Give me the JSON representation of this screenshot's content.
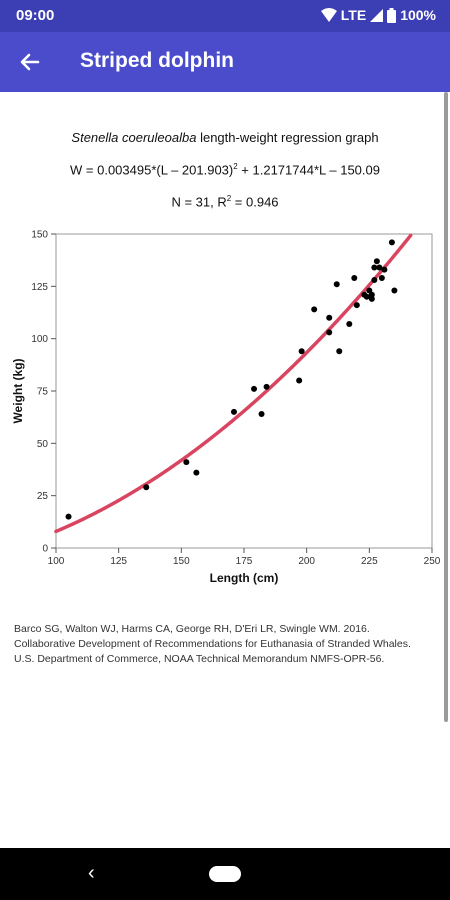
{
  "status": {
    "time": "09:00",
    "network": "LTE",
    "battery": "100%"
  },
  "app_bar": {
    "title": "Striped dolphin"
  },
  "header": {
    "species": "Stenella coeruleoalba",
    "title_rest": " length-weight regression graph",
    "equation_a": "W = 0.003495*(L – 201.903)",
    "equation_sup": "2",
    "equation_b": " + 1.2171744*L – 150.09",
    "stats_a": "N = 31, R",
    "stats_sup": "2",
    "stats_b": " = 0.946"
  },
  "citation": {
    "line1": "Barco SG, Walton WJ, Harms CA, George RH, D'Eri LR, Swingle WM. 2016.",
    "line2": "Collaborative Development of Recommendations for Euthanasia of Stranded Whales.",
    "line3": "U.S. Department of Commerce, NOAA Technical Memorandum NMFS-OPR-56."
  },
  "chart_data": {
    "type": "scatter",
    "xlabel": "Length (cm)",
    "ylabel": "Weight (kg)",
    "xlim": [
      100,
      250
    ],
    "ylim": [
      0,
      150
    ],
    "xticks": [
      100,
      125,
      150,
      175,
      200,
      225,
      250
    ],
    "yticks": [
      0,
      25,
      50,
      75,
      100,
      125,
      150
    ],
    "grid": false,
    "points": [
      [
        105,
        15
      ],
      [
        136,
        29
      ],
      [
        152,
        41
      ],
      [
        156,
        36
      ],
      [
        171,
        65
      ],
      [
        179,
        76
      ],
      [
        182,
        64
      ],
      [
        184,
        77
      ],
      [
        197,
        80
      ],
      [
        198,
        94
      ],
      [
        203,
        114
      ],
      [
        209,
        110
      ],
      [
        209,
        103
      ],
      [
        212,
        126
      ],
      [
        213,
        94
      ],
      [
        217,
        107
      ],
      [
        219,
        129
      ],
      [
        220,
        116
      ],
      [
        223,
        121
      ],
      [
        225,
        123
      ],
      [
        226,
        119
      ],
      [
        226,
        121
      ],
      [
        227,
        128
      ],
      [
        227,
        134
      ],
      [
        228,
        137
      ],
      [
        229,
        134
      ],
      [
        230,
        129
      ],
      [
        231,
        133
      ],
      [
        234,
        146
      ],
      [
        235,
        123
      ],
      [
        224,
        120
      ]
    ],
    "fit": {
      "a": 0.003495,
      "h": 201.903,
      "b": 1.2171744,
      "c": -150.09,
      "color": "#d94560"
    },
    "point_color": "#000000"
  }
}
